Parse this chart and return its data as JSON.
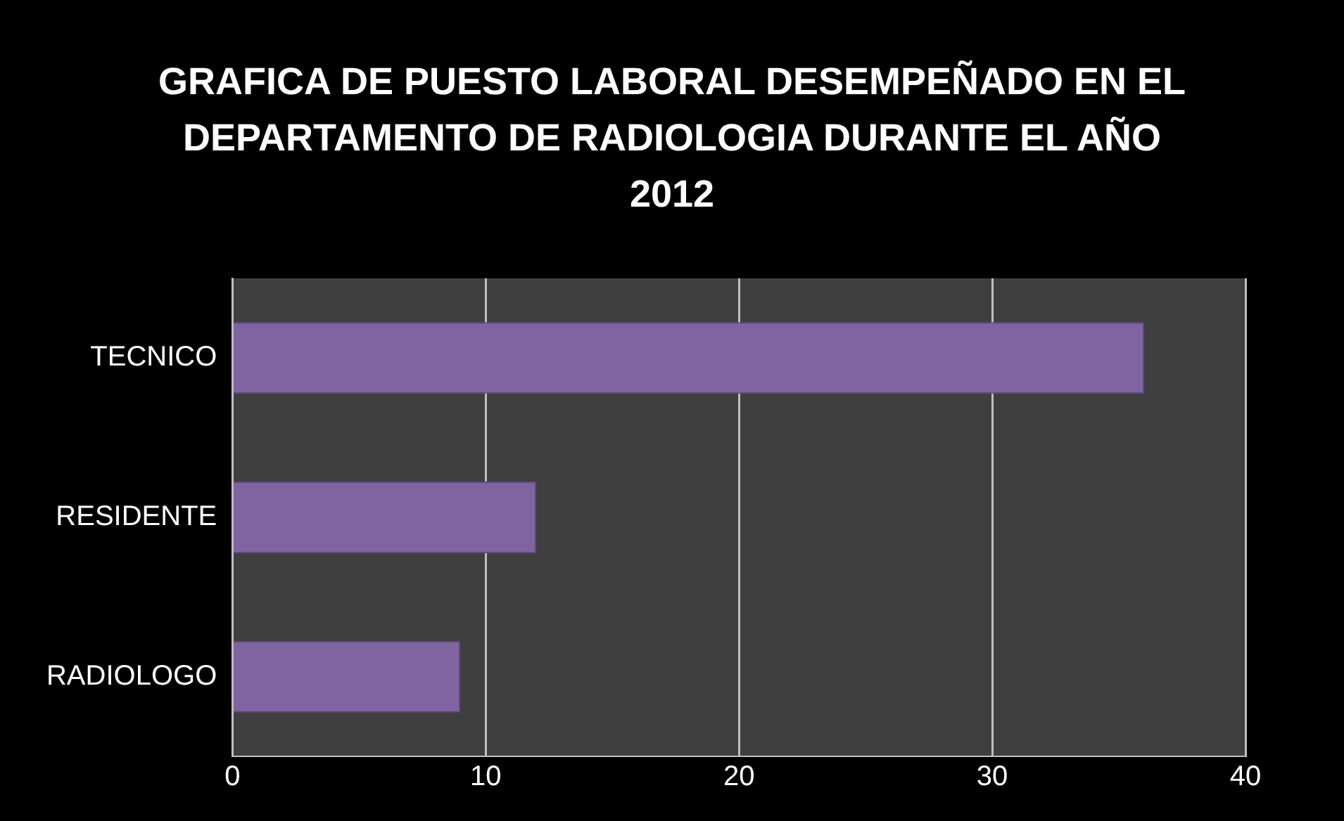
{
  "chart_data": {
    "type": "bar",
    "orientation": "horizontal",
    "title": "GRAFICA DE PUESTO LABORAL DESEMPEÑADO EN EL DEPARTAMENTO DE RADIOLOGIA DURANTE EL AÑO 2012",
    "categories": [
      "TECNICO",
      "RESIDENTE",
      "RADIOLOGO"
    ],
    "values": [
      36,
      12,
      9
    ],
    "color": "#8064a2",
    "xlim": [
      0,
      40
    ],
    "xticks": [
      0,
      10,
      20,
      30,
      40
    ],
    "grid": "x",
    "legend": false
  }
}
